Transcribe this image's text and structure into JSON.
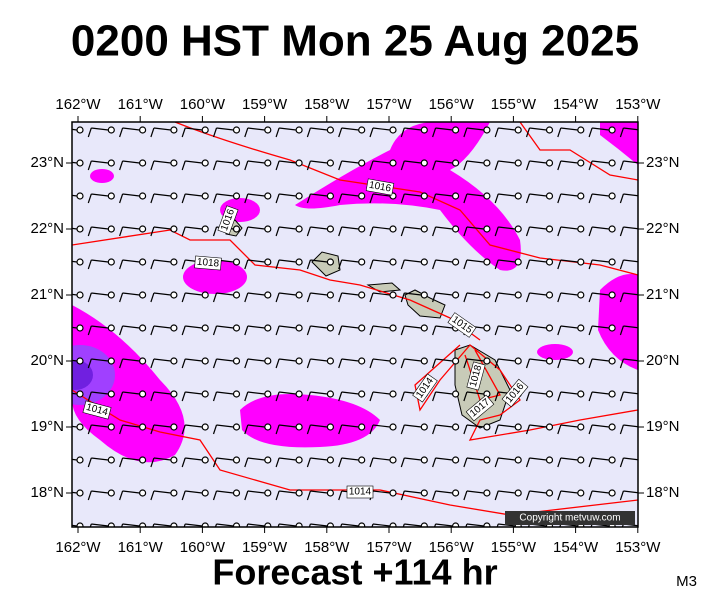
{
  "header": {
    "title": "0200 HST Mon 25 Aug 2025"
  },
  "map": {
    "lon_labels": [
      "162°W",
      "161°W",
      "160°W",
      "159°W",
      "158°W",
      "157°W",
      "156°W",
      "155°W",
      "154°W",
      "153°W"
    ],
    "lat_labels": [
      "23°N",
      "22°N",
      "21°N",
      "20°N",
      "19°N",
      "18°N"
    ],
    "isobar_labels": [
      "1016",
      "1016",
      "1018",
      "1015",
      "1014",
      "1018",
      "1017",
      "1016",
      "1014",
      "1014"
    ],
    "copyright": "Copyright metvuw.com"
  },
  "footer": {
    "forecast": "Forecast +114 hr",
    "code": "M3"
  }
}
